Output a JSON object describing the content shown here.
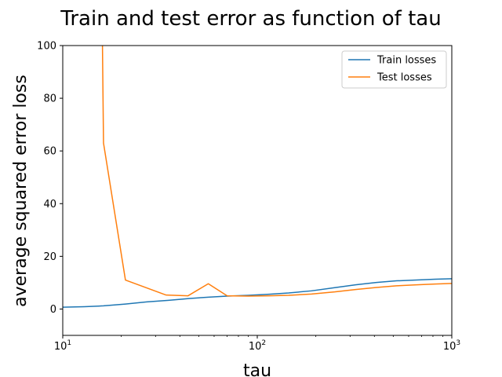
{
  "chart_data": {
    "type": "line",
    "title": "Train and test error as function of tau",
    "xlabel": "tau",
    "ylabel": "average squared error loss",
    "xscale": "log",
    "xlim": [
      10,
      1000
    ],
    "ylim": [
      -10,
      100
    ],
    "x_ticks": [
      {
        "value": 10,
        "base": "10",
        "exp": "1"
      },
      {
        "value": 100,
        "base": "10",
        "exp": "2"
      },
      {
        "value": 1000,
        "base": "10",
        "exp": "3"
      }
    ],
    "y_ticks": [
      "0",
      "20",
      "40",
      "60",
      "80",
      "100"
    ],
    "legend_position": "top-right",
    "grid": false,
    "series": [
      {
        "name": "Train losses",
        "color": "#1f77b4",
        "x": [
          10,
          12.9,
          16.2,
          21,
          27,
          35,
          45,
          56,
          70,
          90,
          115,
          145,
          190,
          250,
          320,
          410,
          520,
          660,
          820,
          1000
        ],
        "y": [
          0.7,
          0.9,
          1.2,
          1.9,
          2.7,
          3.3,
          4.0,
          4.5,
          4.9,
          5.2,
          5.6,
          6.1,
          6.9,
          8.1,
          9.2,
          10.1,
          10.7,
          11.0,
          11.3,
          11.5
        ]
      },
      {
        "name": "Test losses",
        "color": "#ff7f0e",
        "x": [
          16.0,
          16.2,
          21,
          34,
          44,
          56,
          70,
          90,
          115,
          145,
          190,
          250,
          320,
          410,
          520,
          660,
          820,
          1000
        ],
        "y": [
          100,
          63,
          11,
          5.3,
          5.0,
          9.6,
          5.0,
          4.9,
          5.0,
          5.2,
          5.7,
          6.5,
          7.4,
          8.2,
          8.8,
          9.2,
          9.5,
          9.7
        ]
      }
    ]
  }
}
